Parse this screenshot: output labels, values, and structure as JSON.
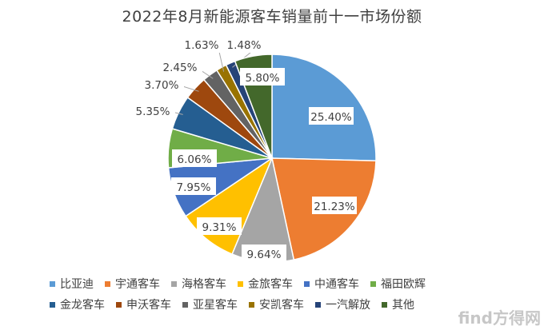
{
  "chart_data": {
    "type": "pie",
    "title": "2022年8月新能源客车销量前十一市场份额",
    "categories": [
      "比亚迪",
      "宇通客车",
      "海格客车",
      "金旅客车",
      "中通客车",
      "福田欧辉",
      "金龙客车",
      "申沃客车",
      "亚星客车",
      "安凯客车",
      "一汽解放",
      "其他"
    ],
    "values": [
      25.4,
      21.23,
      9.64,
      9.31,
      7.95,
      6.06,
      5.35,
      3.7,
      2.45,
      1.63,
      1.48,
      5.8
    ],
    "labels": [
      "25.40%",
      "21.23%",
      "9.64%",
      "9.31%",
      "7.95%",
      "6.06%",
      "5.35%",
      "3.70%",
      "2.45%",
      "1.63%",
      "1.48%",
      "5.80%"
    ],
    "colors": [
      "#5B9BD5",
      "#ED7D31",
      "#A5A5A5",
      "#FFC000",
      "#4472C4",
      "#70AD47",
      "#255E91",
      "#9E480E",
      "#636363",
      "#997300",
      "#264478",
      "#43682B"
    ],
    "legend_position": "bottom"
  },
  "watermark": "find方得网"
}
